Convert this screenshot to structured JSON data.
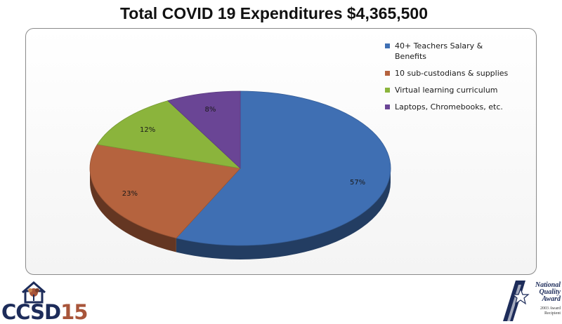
{
  "title": "Total COVID 19 Expenditures $4,365,500",
  "chart_data": {
    "type": "pie",
    "title": "Total COVID 19 Expenditures $4,365,500",
    "slices": [
      {
        "label": "40+ Teachers Salary & Benefits",
        "value": 57,
        "display": "57%",
        "color": "#3f6fb3"
      },
      {
        "label": "10 sub-custodians & supplies",
        "value": 23,
        "display": "23%",
        "color": "#b5633e"
      },
      {
        "label": "Virtual learning curriculum",
        "value": 12,
        "display": "12%",
        "color": "#8bb43c"
      },
      {
        "label": "Laptops, Chromebooks, etc.",
        "value": 8,
        "display": "8%",
        "color": "#6a4595"
      }
    ],
    "legend_position": "top-right"
  },
  "footer": {
    "logo_text_main": "CCSD",
    "logo_text_num": "15",
    "award_title_1": "National",
    "award_title_2": "Quality",
    "award_title_3": "Award",
    "award_sub_1": "2003 Award",
    "award_sub_2": "Recipient"
  }
}
